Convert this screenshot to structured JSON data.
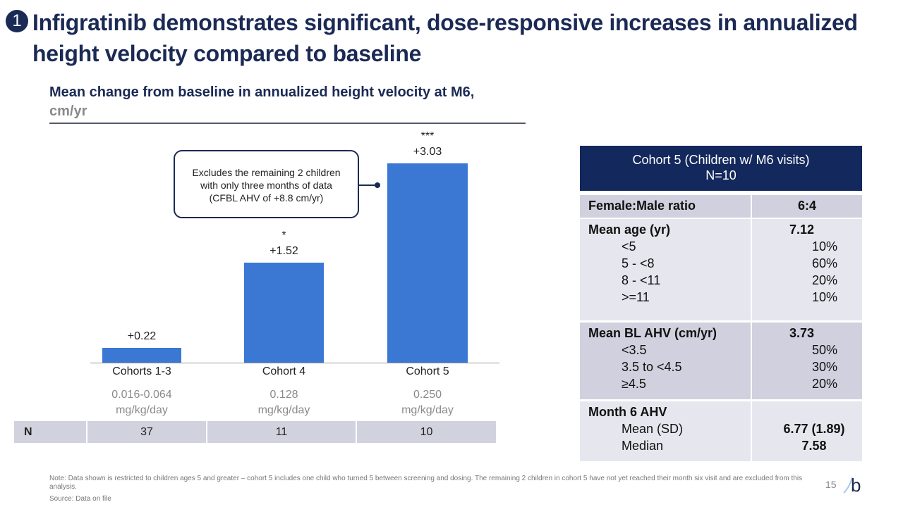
{
  "slide": {
    "number_badge": "1",
    "title": "Infigratinib demonstrates significant, dose-responsive increases in annualized height velocity compared to baseline",
    "page_number": "15",
    "logo": "b"
  },
  "chart_data": {
    "type": "bar",
    "title": "Mean change from baseline in annualized height velocity at M6,",
    "unit": "cm/yr",
    "categories": [
      "Cohorts 1-3",
      "Cohort 4",
      "Cohort 5"
    ],
    "values": [
      0.22,
      1.52,
      3.03
    ],
    "value_labels": [
      "+0.22",
      "+1.52",
      "+3.03"
    ],
    "significance": [
      "",
      "*",
      "***"
    ],
    "doses": [
      [
        "0.016-0.064",
        "mg/kg/day"
      ],
      [
        "0.128",
        "mg/kg/day"
      ],
      [
        "0.250",
        "mg/kg/day"
      ]
    ],
    "n_label": "N",
    "n": [
      "37",
      "11",
      "10"
    ],
    "bar_color": "#3a78d4",
    "ylim": [
      0,
      3.03
    ],
    "grid": false,
    "callout": [
      "Excludes the remaining 2 children",
      "with only three months of data",
      "(CFBL AHV of +8.8 cm/yr)"
    ]
  },
  "table": {
    "header": [
      "Cohort 5 (Children w/ M6 visits)",
      "N=10"
    ],
    "female_male": {
      "label": "Female:Male ratio",
      "value": "6:4"
    },
    "age": {
      "label": "Mean age (yr)",
      "value": "7.12",
      "rows": [
        [
          "<5",
          "10%"
        ],
        [
          "5 - <8",
          "60%"
        ],
        [
          "8 - <11",
          "20%"
        ],
        [
          ">=11",
          "10%"
        ]
      ]
    },
    "bl": {
      "label": "Mean BL AHV (cm/yr)",
      "value": "3.73",
      "rows": [
        [
          "<3.5",
          "50%"
        ],
        [
          "3.5 to <4.5",
          "30%"
        ],
        [
          "≥4.5",
          "20%"
        ]
      ]
    },
    "m6": {
      "label": "Month 6 AHV",
      "rows": [
        [
          "Mean (SD)",
          "6.77 (1.89)"
        ],
        [
          "Median",
          "7.58"
        ]
      ]
    }
  },
  "footer": {
    "note": "Note: Data shown is restricted to children ages 5 and greater – cohort 5 includes one child who turned 5 between screening and dosing. The remaining 2 children in cohort 5 have not yet reached their month six visit and are excluded from this analysis.",
    "source": "Source: Data on file"
  },
  "colors": {
    "navy": "#1b2a55",
    "header": "#13285c",
    "row_dark": "#d0d0de",
    "row_light": "#e6e6ee"
  }
}
